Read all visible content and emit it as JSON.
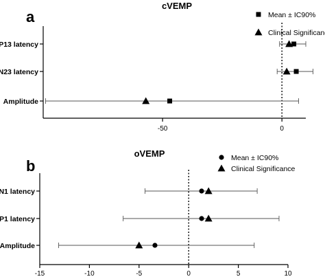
{
  "chart_data": [
    {
      "panel": "a",
      "type": "forest",
      "title": "cVEMP",
      "categories": [
        "P13 latency",
        "N23 latency",
        "Amplitude"
      ],
      "xlim": [
        -100,
        10
      ],
      "xticks": [
        -50,
        0
      ],
      "reference_line_x": 0,
      "legend": {
        "position": "top-right",
        "entries": [
          {
            "label": "Mean ± IC90%",
            "marker": "square"
          },
          {
            "label": "Clinical Significance",
            "marker": "triangle"
          }
        ]
      },
      "series": [
        {
          "name": "Mean ± IC90%",
          "marker": "square",
          "values": [
            5,
            6,
            -47
          ],
          "ci_low": [
            -1,
            -2,
            -99
          ],
          "ci_high": [
            10,
            13,
            7
          ]
        },
        {
          "name": "Clinical Significance",
          "marker": "triangle",
          "values": [
            3,
            2,
            -57
          ]
        }
      ]
    },
    {
      "panel": "b",
      "type": "forest",
      "title": "oVEMP",
      "categories": [
        "N1 latency",
        "P1 latency",
        "Amplitude"
      ],
      "xlim": [
        -15,
        10
      ],
      "xticks": [
        -15,
        -10,
        -5,
        0,
        5,
        10
      ],
      "reference_line_x": 0,
      "legend": {
        "position": "top-right",
        "entries": [
          {
            "label": "Mean ± IC90%",
            "marker": "circle"
          },
          {
            "label": "Clinical Significance",
            "marker": "triangle"
          }
        ]
      },
      "series": [
        {
          "name": "Mean ± IC90%",
          "marker": "circle",
          "values": [
            1.3,
            1.3,
            -3.4
          ],
          "ci_low": [
            -4.4,
            -6.6,
            -13.1
          ],
          "ci_high": [
            6.9,
            9.1,
            6.6
          ]
        },
        {
          "name": "Clinical Significance",
          "marker": "triangle",
          "values": [
            2.0,
            2.0,
            -5.0
          ]
        }
      ]
    }
  ]
}
